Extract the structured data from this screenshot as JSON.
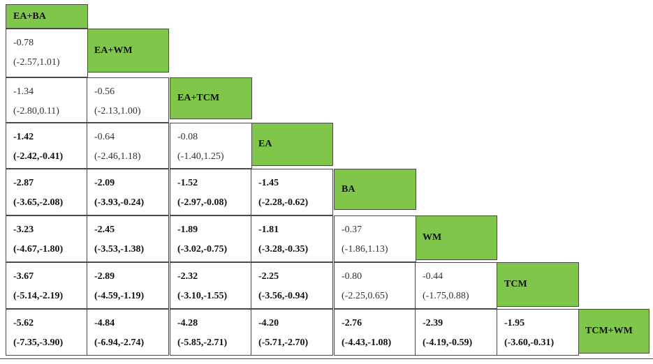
{
  "treatments": [
    "EA+BA",
    "EA+WM",
    "EA+TCM",
    "EA",
    "BA",
    "WM",
    "TCM",
    "TCM+WM"
  ],
  "rows": [
    [],
    [
      {
        "est": "-0.78",
        "ci": "(-2.57,1.01)",
        "sig": false
      }
    ],
    [
      {
        "est": "-1.34",
        "ci": "(-2.80,0.11)",
        "sig": false
      },
      {
        "est": "-0.56",
        "ci": "(-2.13,1.00)",
        "sig": false
      }
    ],
    [
      {
        "est": "-1.42",
        "ci": "(-2.42,-0.41)",
        "sig": true
      },
      {
        "est": "-0.64",
        "ci": "(-2.46,1.18)",
        "sig": false
      },
      {
        "est": "-0.08",
        "ci": "(-1.40,1.25)",
        "sig": false
      }
    ],
    [
      {
        "est": "-2.87",
        "ci": "(-3.65,-2.08)",
        "sig": true
      },
      {
        "est": "-2.09",
        "ci": "(-3.93,-0.24)",
        "sig": true
      },
      {
        "est": "-1.52",
        "ci": "(-2.97,-0.08)",
        "sig": true
      },
      {
        "est": "-1.45",
        "ci": "(-2.28,-0.62)",
        "sig": true
      }
    ],
    [
      {
        "est": "-3.23",
        "ci": "(-4.67,-1.80)",
        "sig": true
      },
      {
        "est": "-2.45",
        "ci": "(-3.53,-1.38)",
        "sig": true
      },
      {
        "est": "-1.89",
        "ci": "(-3.02,-0.75)",
        "sig": true
      },
      {
        "est": "-1.81",
        "ci": "(-3.28,-0.35)",
        "sig": true
      },
      {
        "est": "-0.37",
        "ci": "(-1.86,1.13)",
        "sig": false
      }
    ],
    [
      {
        "est": "-3.67",
        "ci": "(-5.14,-2.19)",
        "sig": true
      },
      {
        "est": "-2.89",
        "ci": "(-4.59,-1.19)",
        "sig": true
      },
      {
        "est": "-2.32",
        "ci": "(-3.10,-1.55)",
        "sig": true
      },
      {
        "est": "-2.25",
        "ci": "(-3.56,-0.94)",
        "sig": true
      },
      {
        "est": "-0.80",
        "ci": "(-2.25,0.65)",
        "sig": false
      },
      {
        "est": "-0.44",
        "ci": "(-1.75,0.88)",
        "sig": false
      }
    ],
    [
      {
        "est": "-5.62",
        "ci": "(-7.35,-3.90)",
        "sig": true
      },
      {
        "est": "-4.84",
        "ci": "(-6.94,-2.74)",
        "sig": true
      },
      {
        "est": "-4.28",
        "ci": "(-5.85,-2.71)",
        "sig": true
      },
      {
        "est": "-4.20",
        "ci": "(-5.71,-2.70)",
        "sig": true
      },
      {
        "est": "-2.76",
        "ci": "(-4.43,-1.08)",
        "sig": true
      },
      {
        "est": "-2.39",
        "ci": "(-4.19,-0.59)",
        "sig": true
      },
      {
        "est": "-1.95",
        "ci": "(-3.60,-0.31)",
        "sig": true
      }
    ]
  ],
  "colors": {
    "diagonal": "#7fc64b",
    "border": "#4a4a4a"
  }
}
